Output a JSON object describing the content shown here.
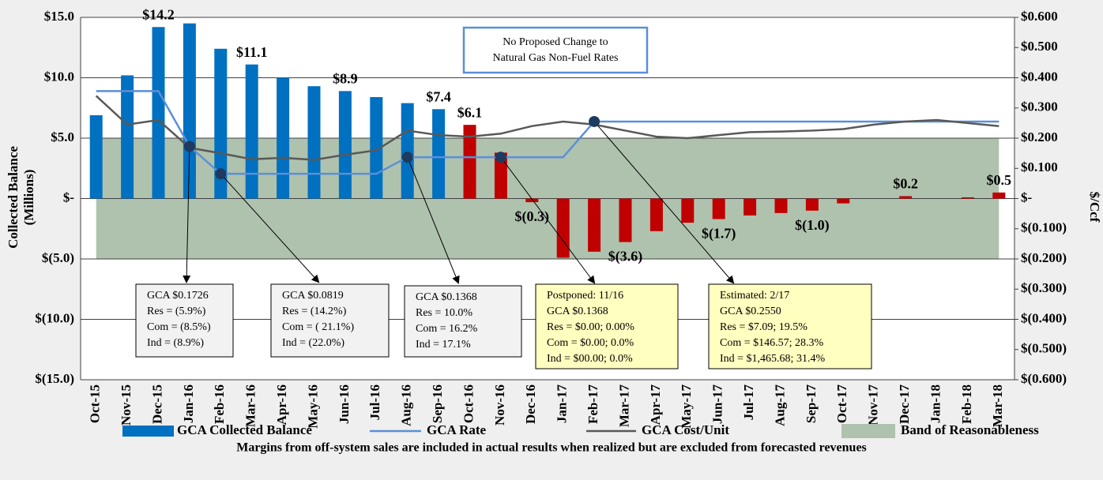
{
  "chart_data": {
    "type": "bar",
    "y_label_lines": [
      "Collected Balance",
      "(Millions)"
    ],
    "y2_label": "$/Ccf",
    "categories": [
      "Oct-15",
      "Nov-15",
      "Dec-15",
      "Jan-16",
      "Feb-16",
      "Mar-16",
      "Apr-16",
      "May-16",
      "Jun-16",
      "Jul-16",
      "Aug-16",
      "Sep-16",
      "Oct-16",
      "Nov-16",
      "Dec-16",
      "Jan-17",
      "Feb-17",
      "Mar-17",
      "Apr-17",
      "May-17",
      "Jun-17",
      "Jul-17",
      "Aug-17",
      "Sep-17",
      "Oct-17",
      "Nov-17",
      "Dec-17",
      "Jan-18",
      "Feb-18",
      "Mar-18"
    ],
    "series": [
      {
        "name": "GCA Collected Balance",
        "type": "bar",
        "color": "#0070c0",
        "colors": [
          "#0070c0",
          "#0070c0",
          "#0070c0",
          "#0070c0",
          "#0070c0",
          "#0070c0",
          "#0070c0",
          "#0070c0",
          "#0070c0",
          "#0070c0",
          "#0070c0",
          "#0070c0",
          "#c00000",
          "#c00000",
          "#c00000",
          "#c00000",
          "#c00000",
          "#c00000",
          "#c00000",
          "#c00000",
          "#c00000",
          "#c00000",
          "#c00000",
          "#c00000",
          "#c00000",
          "#c00000",
          "#c00000",
          "#c00000",
          "#c00000",
          "#c00000"
        ],
        "values": [
          6.9,
          10.2,
          14.2,
          14.5,
          12.4,
          11.1,
          10.0,
          9.3,
          8.9,
          8.4,
          7.9,
          7.4,
          6.1,
          3.8,
          -0.3,
          -4.9,
          -4.4,
          -3.6,
          -2.7,
          -2.0,
          -1.7,
          -1.4,
          -1.2,
          -1.0,
          -0.4,
          0,
          0.2,
          0,
          0.1,
          0.5
        ],
        "value_labels": [
          null,
          null,
          "$14.2",
          null,
          null,
          "$11.1",
          null,
          null,
          "$8.9",
          null,
          null,
          "$7.4",
          "$6.1",
          null,
          "$(0.3)",
          null,
          null,
          "$(3.6)",
          null,
          null,
          "$(1.7)",
          null,
          null,
          "$(1.0)",
          null,
          null,
          "$0.2",
          null,
          null,
          "$0.5"
        ]
      },
      {
        "name": "GCA Rate",
        "type": "line",
        "axis": "y2",
        "color": "#5b8fd8",
        "values": [
          0.356,
          0.356,
          0.356,
          0.1726,
          0.0819,
          0.0819,
          0.0819,
          0.0819,
          0.0819,
          0.0819,
          0.1368,
          0.1368,
          0.1368,
          0.1368,
          0.1368,
          0.1368,
          0.255,
          0.255,
          0.255,
          0.255,
          0.255,
          0.255,
          0.255,
          0.255,
          0.255,
          0.255,
          0.255,
          0.255,
          0.255,
          0.255
        ]
      },
      {
        "name": "GCA Cost/Unit",
        "type": "line",
        "axis": "y2",
        "color": "#595959",
        "values": [
          0.34,
          0.245,
          0.26,
          0.168,
          0.15,
          0.13,
          0.135,
          0.128,
          0.145,
          0.16,
          0.225,
          0.21,
          0.205,
          0.215,
          0.24,
          0.255,
          0.245,
          0.225,
          0.205,
          0.2,
          0.21,
          0.22,
          0.222,
          0.225,
          0.23,
          0.245,
          0.255,
          0.26,
          0.25,
          0.24
        ]
      }
    ],
    "band": {
      "name": "Band of Reasonableness",
      "color": "#afc2ae",
      "values": [
        -5,
        5
      ]
    },
    "ylim": [
      -15,
      15
    ],
    "yticks": [
      {
        "value": 15,
        "label": "$15.0"
      },
      {
        "value": 10,
        "label": "$10.0"
      },
      {
        "value": 5,
        "label": "$5.0"
      },
      {
        "value": 0,
        "label": "$-"
      },
      {
        "value": -5,
        "label": "$(5.0)"
      },
      {
        "value": -10,
        "label": "$(10.0)"
      },
      {
        "value": -15,
        "label": "$(15.0)"
      }
    ],
    "y2lim": [
      -0.6,
      0.6
    ],
    "y2ticks": [
      {
        "value": 0.6,
        "label": "$0.600"
      },
      {
        "value": 0.5,
        "label": "$0.500"
      },
      {
        "value": 0.4,
        "label": "$0.400"
      },
      {
        "value": 0.3,
        "label": "$0.300"
      },
      {
        "value": 0.2,
        "label": "$0.200"
      },
      {
        "value": 0.1,
        "label": "$0.100"
      },
      {
        "value": 0,
        "label": "$-"
      },
      {
        "value": -0.1,
        "label": "$(0.100)"
      },
      {
        "value": -0.2,
        "label": "$(0.200)"
      },
      {
        "value": -0.3,
        "label": "$(0.300)"
      },
      {
        "value": -0.4,
        "label": "$(0.400)"
      },
      {
        "value": -0.5,
        "label": "$(0.500)"
      },
      {
        "value": -0.6,
        "label": "$(0.600)"
      }
    ],
    "grid": true,
    "note_box": [
      "No Proposed Change to",
      "Natural Gas Non-Fuel Rates"
    ],
    "annotations": [
      {
        "color": "#f2f2f2",
        "lines": [
          "GCA $0.1726",
          "Res = (5.9%)",
          "Com = (8.5%)",
          "Ind = (8.9%)"
        ]
      },
      {
        "color": "#f2f2f2",
        "lines": [
          "GCA $0.0819",
          "Res = (14.2%)",
          "Com = ( 21.1%)",
          "Ind = (22.0%)"
        ]
      },
      {
        "color": "#f2f2f2",
        "lines": [
          "GCA $0.1368",
          "Res = 10.0%",
          "Com = 16.2%",
          "Ind = 17.1%"
        ]
      },
      {
        "color": "#ffffc0",
        "lines": [
          "Postponed: 11/16",
          "GCA $0.1368",
          "Res = $0.00; 0.00%",
          "Com = $0.00; 0.0%",
          "Ind = $00.00; 0.0%"
        ]
      },
      {
        "color": "#ffffc0",
        "lines": [
          "Estimated: 2/17",
          "GCA $0.2550",
          "Res = $7.09; 19.5%",
          "Com = $146.57; 28.3%",
          "Ind = $1,465.68; 31.4%"
        ]
      }
    ],
    "footnote": "Margins from off-system  sales  are  included in actual results when realized but are excluded from  forecasted revenues"
  }
}
